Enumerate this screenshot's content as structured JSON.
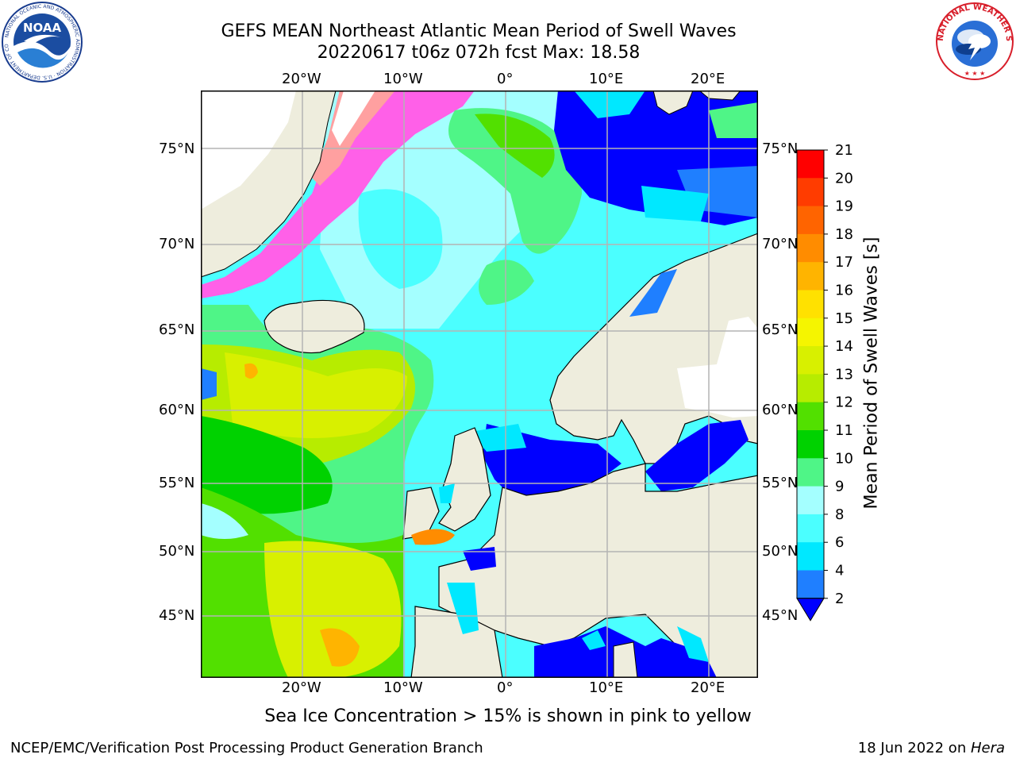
{
  "title": {
    "line1": "GEFS MEAN Northeast Atlantic Mean Period of Swell Waves",
    "line2": "20220617 t06z 072h fcst   Max: 18.58"
  },
  "map": {
    "lat_labels_left": [
      "75°N",
      "70°N",
      "65°N",
      "60°N",
      "55°N",
      "50°N",
      "45°N"
    ],
    "lat_labels_right": [
      "75°N",
      "70°N",
      "65°N",
      "60°N",
      "55°N",
      "50°N",
      "45°N"
    ],
    "lon_labels_top": [
      "20°W",
      "10°W",
      "0°",
      "10°E",
      "20°E"
    ],
    "lon_labels_bottom": [
      "20°W",
      "10°W",
      "0°",
      "10°E",
      "20°E"
    ],
    "land_color": "#eeeddd",
    "grid_color": "#b4b4b4"
  },
  "colorbar": {
    "label": "Mean Period of Swell Waves [s]",
    "ticks": [
      "2",
      "4",
      "6",
      "8",
      "9",
      "10",
      "11",
      "12",
      "13",
      "14",
      "15",
      "16",
      "17",
      "18",
      "19",
      "20",
      "21"
    ],
    "colors": [
      "#0000ff",
      "#1f7fff",
      "#00e8ff",
      "#4bffff",
      "#a4ffff",
      "#4ff587",
      "#00d200",
      "#52e000",
      "#b7ec00",
      "#d8f000",
      "#f5f500",
      "#ffe100",
      "#ffb400",
      "#ff8c00",
      "#ff6400",
      "#ff3c00",
      "#ff0000"
    ],
    "extend": "min"
  },
  "footnote": "Sea Ice Concentration > 15% is shown in pink to yellow",
  "credit_left": "NCEP/EMC/Verification Post Processing Product Generation Branch",
  "credit_right_date": "18 Jun 2022 on ",
  "credit_right_machine": "Hera",
  "logos": {
    "noaa_text": "NOAA",
    "noaa_ring_text": "NATIONAL OCEANIC AND ATMOSPHERIC ADMINISTRATION · U.S. DEPARTMENT OF COMMERCE",
    "nws_ring_text": "NATIONAL WEATHER SERVICE"
  }
}
